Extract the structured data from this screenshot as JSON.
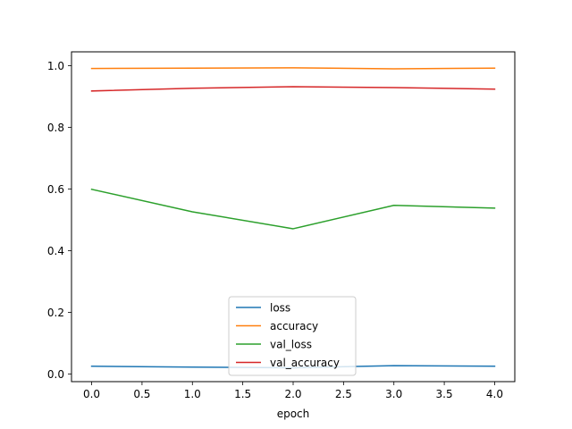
{
  "chart_data": {
    "type": "line",
    "xlabel": "epoch",
    "ylabel": "",
    "xlim": [
      -0.2,
      4.2
    ],
    "ylim": [
      -0.025,
      1.045
    ],
    "xticks": [
      0.0,
      0.5,
      1.0,
      1.5,
      2.0,
      2.5,
      3.0,
      3.5,
      4.0
    ],
    "xtick_labels": [
      "0.0",
      "0.5",
      "1.0",
      "1.5",
      "2.0",
      "2.5",
      "3.0",
      "3.5",
      "4.0"
    ],
    "yticks": [
      0.0,
      0.2,
      0.4,
      0.6,
      0.8,
      1.0
    ],
    "ytick_labels": [
      "0.0",
      "0.2",
      "0.4",
      "0.6",
      "0.8",
      "1.0"
    ],
    "grid": false,
    "legend_position": "lower-center",
    "x": [
      0,
      1,
      2,
      3,
      4
    ],
    "series": [
      {
        "name": "loss",
        "color": "#1f77b4",
        "values": [
          0.025,
          0.022,
          0.02,
          0.027,
          0.025
        ]
      },
      {
        "name": "accuracy",
        "color": "#ff7f0e",
        "values": [
          0.991,
          0.992,
          0.993,
          0.99,
          0.992
        ]
      },
      {
        "name": "val_loss",
        "color": "#2ca02c",
        "values": [
          0.599,
          0.526,
          0.471,
          0.547,
          0.538
        ]
      },
      {
        "name": "val_accuracy",
        "color": "#d62728",
        "values": [
          0.918,
          0.927,
          0.932,
          0.929,
          0.924
        ]
      }
    ]
  }
}
